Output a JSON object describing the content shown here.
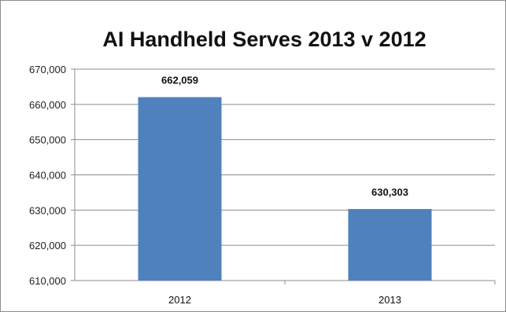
{
  "chart_data": {
    "type": "bar",
    "title": "AI Handheld Serves 2013 v 2012",
    "xlabel": "",
    "ylabel": "",
    "categories": [
      "2012",
      "2013"
    ],
    "values": [
      662059,
      630303
    ],
    "data_labels": [
      "662,059",
      "630,303"
    ],
    "ylim": [
      610000,
      670000
    ],
    "yticks": [
      610000,
      620000,
      630000,
      640000,
      650000,
      660000,
      670000
    ],
    "ytick_labels": [
      "610,000",
      "620,000",
      "630,000",
      "640,000",
      "650,000",
      "660,000",
      "670,000"
    ],
    "grid": true,
    "legend": "none",
    "bar_color": "#4f81bd",
    "gridline_color": "#8c8c8c"
  }
}
